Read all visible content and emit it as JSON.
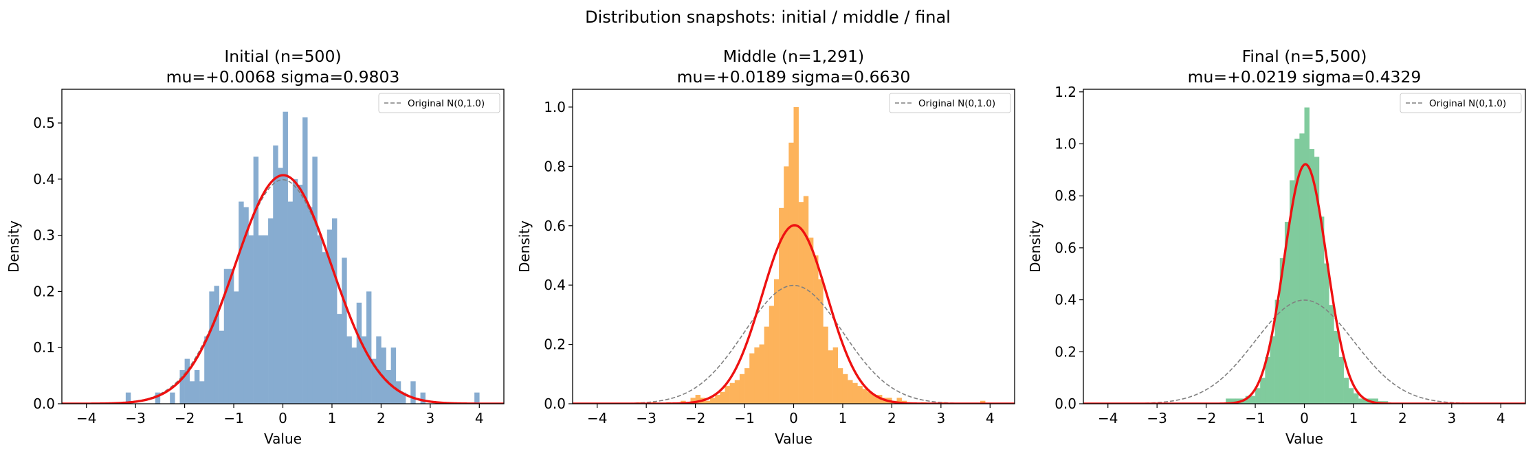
{
  "figure": {
    "suptitle": "Distribution snapshots: initial / middle / final"
  },
  "chart_data": [
    {
      "type": "bar",
      "title_line1": "Initial  (n=500)",
      "title_line2": "mu=+0.0068  sigma=0.9803",
      "xlabel": "Value",
      "ylabel": "Density",
      "xlim": [
        -4.5,
        4.5
      ],
      "ylim": [
        0,
        0.56
      ],
      "xticks": [
        -4,
        -3,
        -2,
        -1,
        0,
        1,
        2,
        3,
        4
      ],
      "yticks": [
        0.0,
        0.1,
        0.2,
        0.3,
        0.4,
        0.5
      ],
      "ytick_labels": [
        "0.0",
        "0.1",
        "0.2",
        "0.3",
        "0.4",
        "0.5"
      ],
      "hist_color": "#87acd0",
      "bin_width": 0.1,
      "bins": [
        [
          -3.2,
          0.02
        ],
        [
          -2.6,
          0.02
        ],
        [
          -2.3,
          0.02
        ],
        [
          -2.1,
          0.06
        ],
        [
          -2.0,
          0.08
        ],
        [
          -1.9,
          0.04
        ],
        [
          -1.8,
          0.06
        ],
        [
          -1.7,
          0.04
        ],
        [
          -1.6,
          0.12
        ],
        [
          -1.5,
          0.2
        ],
        [
          -1.4,
          0.21
        ],
        [
          -1.3,
          0.13
        ],
        [
          -1.2,
          0.24
        ],
        [
          -1.1,
          0.24
        ],
        [
          -1.0,
          0.2
        ],
        [
          -0.9,
          0.36
        ],
        [
          -0.8,
          0.35
        ],
        [
          -0.7,
          0.3
        ],
        [
          -0.6,
          0.44
        ],
        [
          -0.5,
          0.3
        ],
        [
          -0.4,
          0.3
        ],
        [
          -0.3,
          0.33
        ],
        [
          -0.2,
          0.46
        ],
        [
          -0.1,
          0.42
        ],
        [
          0.0,
          0.52
        ],
        [
          0.1,
          0.36
        ],
        [
          0.2,
          0.4
        ],
        [
          0.3,
          0.39
        ],
        [
          0.4,
          0.51
        ],
        [
          0.5,
          0.35
        ],
        [
          0.6,
          0.44
        ],
        [
          0.7,
          0.3
        ],
        [
          0.8,
          0.27
        ],
        [
          0.9,
          0.31
        ],
        [
          1.0,
          0.33
        ],
        [
          1.1,
          0.16
        ],
        [
          1.2,
          0.26
        ],
        [
          1.3,
          0.12
        ],
        [
          1.4,
          0.1
        ],
        [
          1.5,
          0.18
        ],
        [
          1.6,
          0.12
        ],
        [
          1.7,
          0.2
        ],
        [
          1.8,
          0.08
        ],
        [
          1.9,
          0.12
        ],
        [
          2.0,
          0.1
        ],
        [
          2.1,
          0.06
        ],
        [
          2.2,
          0.1
        ],
        [
          2.3,
          0.04
        ],
        [
          2.4,
          0.02
        ],
        [
          2.6,
          0.04
        ],
        [
          2.8,
          0.02
        ],
        [
          3.9,
          0.02
        ]
      ],
      "fit_curve": {
        "mu": 0.0068,
        "sigma": 0.9803,
        "color": "#ee1111"
      },
      "reference_curve": {
        "mu": 0.0,
        "sigma": 1.0,
        "color": "#808080"
      },
      "legend": {
        "label": "Original N(0,1.0)",
        "placement": "top-right"
      }
    },
    {
      "type": "bar",
      "title_line1": "Middle  (n=1,291)",
      "title_line2": "mu=+0.0189  sigma=0.6630",
      "xlabel": "Value",
      "ylabel": "Density",
      "xlim": [
        -4.5,
        4.5
      ],
      "ylim": [
        0,
        1.06
      ],
      "xticks": [
        -4,
        -3,
        -2,
        -1,
        0,
        1,
        2,
        3,
        4
      ],
      "yticks": [
        0.0,
        0.2,
        0.4,
        0.6,
        0.8,
        1.0
      ],
      "ytick_labels": [
        "0.0",
        "0.2",
        "0.4",
        "0.6",
        "0.8",
        "1.0"
      ],
      "hist_color": "#fdb35b",
      "bin_width": 0.1,
      "bins": [
        [
          -3.2,
          0.005
        ],
        [
          -2.9,
          0.005
        ],
        [
          -2.6,
          0.005
        ],
        [
          -2.3,
          0.01
        ],
        [
          -2.1,
          0.02
        ],
        [
          -2.0,
          0.03
        ],
        [
          -1.9,
          0.02
        ],
        [
          -1.8,
          0.01
        ],
        [
          -1.7,
          0.02
        ],
        [
          -1.6,
          0.03
        ],
        [
          -1.5,
          0.04
        ],
        [
          -1.4,
          0.06
        ],
        [
          -1.3,
          0.07
        ],
        [
          -1.2,
          0.08
        ],
        [
          -1.1,
          0.1
        ],
        [
          -1.0,
          0.12
        ],
        [
          -0.9,
          0.17
        ],
        [
          -0.8,
          0.19
        ],
        [
          -0.7,
          0.2
        ],
        [
          -0.6,
          0.26
        ],
        [
          -0.5,
          0.33
        ],
        [
          -0.4,
          0.42
        ],
        [
          -0.3,
          0.66
        ],
        [
          -0.2,
          0.8
        ],
        [
          -0.1,
          0.88
        ],
        [
          0.0,
          1.0
        ],
        [
          0.1,
          0.68
        ],
        [
          0.2,
          0.7
        ],
        [
          0.3,
          0.56
        ],
        [
          0.4,
          0.5
        ],
        [
          0.5,
          0.42
        ],
        [
          0.6,
          0.26
        ],
        [
          0.7,
          0.18
        ],
        [
          0.8,
          0.19
        ],
        [
          0.9,
          0.12
        ],
        [
          1.0,
          0.1
        ],
        [
          1.1,
          0.08
        ],
        [
          1.2,
          0.07
        ],
        [
          1.3,
          0.06
        ],
        [
          1.4,
          0.05
        ],
        [
          1.5,
          0.04
        ],
        [
          1.6,
          0.03
        ],
        [
          1.7,
          0.03
        ],
        [
          1.8,
          0.02
        ],
        [
          1.9,
          0.02
        ],
        [
          2.0,
          0.01
        ],
        [
          2.1,
          0.02
        ],
        [
          2.2,
          0.01
        ],
        [
          2.6,
          0.005
        ],
        [
          3.0,
          0.005
        ],
        [
          3.8,
          0.01
        ]
      ],
      "fit_curve": {
        "mu": 0.0189,
        "sigma": 0.663,
        "color": "#ee1111"
      },
      "reference_curve": {
        "mu": 0.0,
        "sigma": 1.0,
        "color": "#808080"
      },
      "legend": {
        "label": "Original N(0,1.0)",
        "placement": "top-right"
      }
    },
    {
      "type": "bar",
      "title_line1": "Final  (n=5,500)",
      "title_line2": "mu=+0.0219  sigma=0.4329",
      "xlabel": "Value",
      "ylabel": "Density",
      "xlim": [
        -4.5,
        4.5
      ],
      "ylim": [
        0,
        1.21
      ],
      "xticks": [
        -4,
        -3,
        -2,
        -1,
        0,
        1,
        2,
        3,
        4
      ],
      "yticks": [
        0.0,
        0.2,
        0.4,
        0.6,
        0.8,
        1.0,
        1.2
      ],
      "ytick_labels": [
        "0.0",
        "0.2",
        "0.4",
        "0.6",
        "0.8",
        "1.0",
        "1.2"
      ],
      "hist_color": "#80cb9d",
      "bin_width": 0.1,
      "bins": [
        [
          -1.6,
          0.02
        ],
        [
          -1.5,
          0.02
        ],
        [
          -1.4,
          0.02
        ],
        [
          -1.3,
          0.02
        ],
        [
          -1.2,
          0.03
        ],
        [
          -1.1,
          0.03
        ],
        [
          -1.0,
          0.06
        ],
        [
          -0.9,
          0.1
        ],
        [
          -0.8,
          0.18
        ],
        [
          -0.7,
          0.26
        ],
        [
          -0.6,
          0.4
        ],
        [
          -0.5,
          0.56
        ],
        [
          -0.4,
          0.7
        ],
        [
          -0.3,
          0.86
        ],
        [
          -0.2,
          1.02
        ],
        [
          -0.1,
          1.04
        ],
        [
          0.0,
          1.14
        ],
        [
          0.1,
          0.98
        ],
        [
          0.2,
          0.95
        ],
        [
          0.3,
          0.72
        ],
        [
          0.4,
          0.54
        ],
        [
          0.5,
          0.38
        ],
        [
          0.6,
          0.28
        ],
        [
          0.7,
          0.18
        ],
        [
          0.8,
          0.1
        ],
        [
          0.9,
          0.06
        ],
        [
          1.0,
          0.04
        ],
        [
          1.1,
          0.02
        ],
        [
          1.2,
          0.02
        ],
        [
          1.3,
          0.02
        ],
        [
          1.4,
          0.02
        ],
        [
          1.5,
          0.01
        ],
        [
          1.6,
          0.01
        ]
      ],
      "fit_curve": {
        "mu": 0.0219,
        "sigma": 0.4329,
        "color": "#ee1111"
      },
      "reference_curve": {
        "mu": 0.0,
        "sigma": 1.0,
        "color": "#808080"
      },
      "legend": {
        "label": "Original N(0,1.0)",
        "placement": "top-right"
      }
    }
  ]
}
